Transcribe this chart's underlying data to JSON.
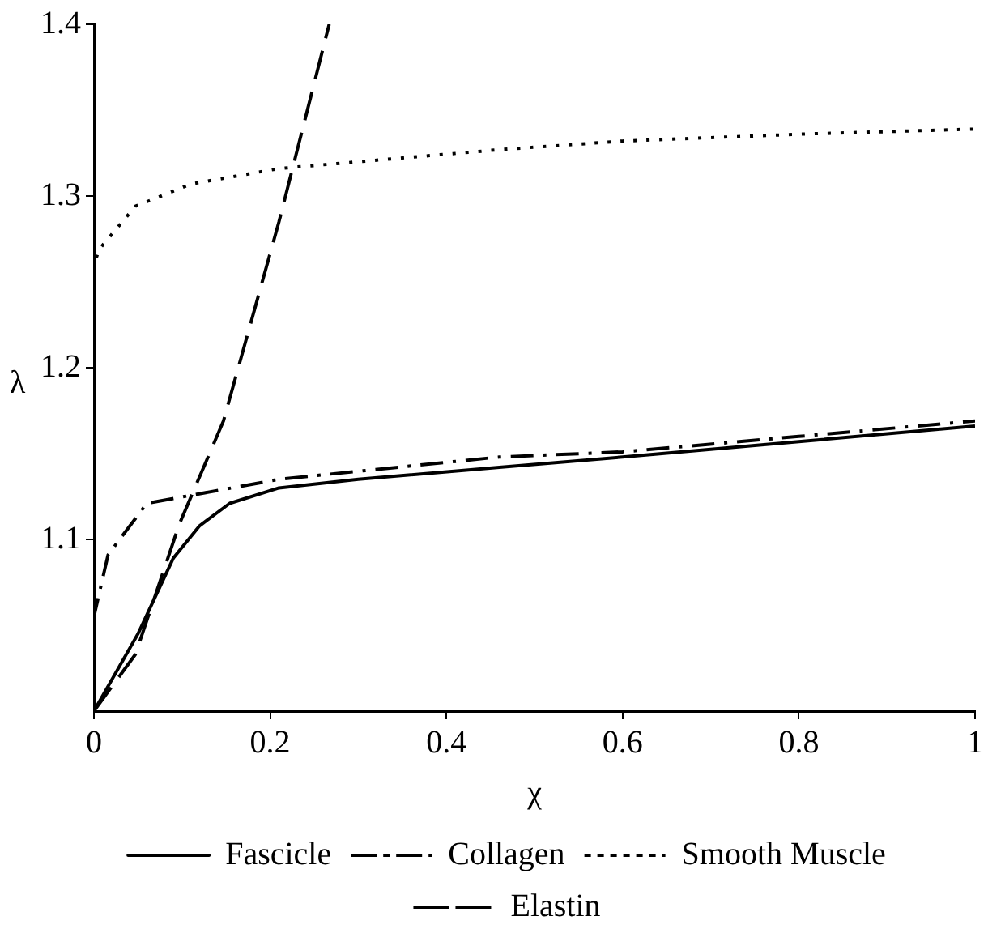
{
  "chart_data": {
    "type": "line",
    "xlabel": "χ",
    "ylabel": "λ",
    "xlim": [
      0,
      1
    ],
    "xticks": [
      0,
      0.2,
      0.4,
      0.6,
      0.8,
      1
    ],
    "ylim": [
      1,
      1.4
    ],
    "yticks": [
      1.1,
      1.2,
      1.3,
      1.4
    ],
    "grid": false,
    "legend": "bottom",
    "marker": "none",
    "series": [
      {
        "name": "Fascicle",
        "color": "#000000",
        "line_style": "solid",
        "x": [
          0,
          0.05,
          0.09,
          0.12,
          0.154,
          0.21,
          0.3,
          0.46,
          0.6,
          0.8,
          1
        ],
        "values": [
          1,
          1.045,
          1.089,
          1.108,
          1.121,
          1.13,
          1.135,
          1.142,
          1.148,
          1.157,
          1.166
        ]
      },
      {
        "name": "Collagen",
        "color": "#000000",
        "line_style": "dashdot",
        "x": [
          0,
          0,
          0.016,
          0.06,
          0.21,
          0.46,
          0.6,
          0.8,
          1
        ],
        "values": [
          1,
          1.055,
          1.091,
          1.121,
          1.135,
          1.148,
          1.151,
          1.16,
          1.169
        ]
      },
      {
        "name": "Smooth Muscle",
        "color": "#000000",
        "line_style": "dotted",
        "x": [
          0,
          0,
          0.006,
          0.047,
          0.11,
          0.21,
          0.46,
          0.6,
          0.8,
          1
        ],
        "values": [
          1,
          1.26,
          1.269,
          1.294,
          1.307,
          1.316,
          1.327,
          1.332,
          1.336,
          1.339
        ]
      },
      {
        "name": "Elastin",
        "color": "#000000",
        "line_style": "dashed",
        "x": [
          0,
          0.047,
          0.097,
          0.147,
          0.21,
          0.267
        ],
        "values": [
          1,
          1.033,
          1.109,
          1.169,
          1.285,
          1.4
        ]
      }
    ]
  }
}
